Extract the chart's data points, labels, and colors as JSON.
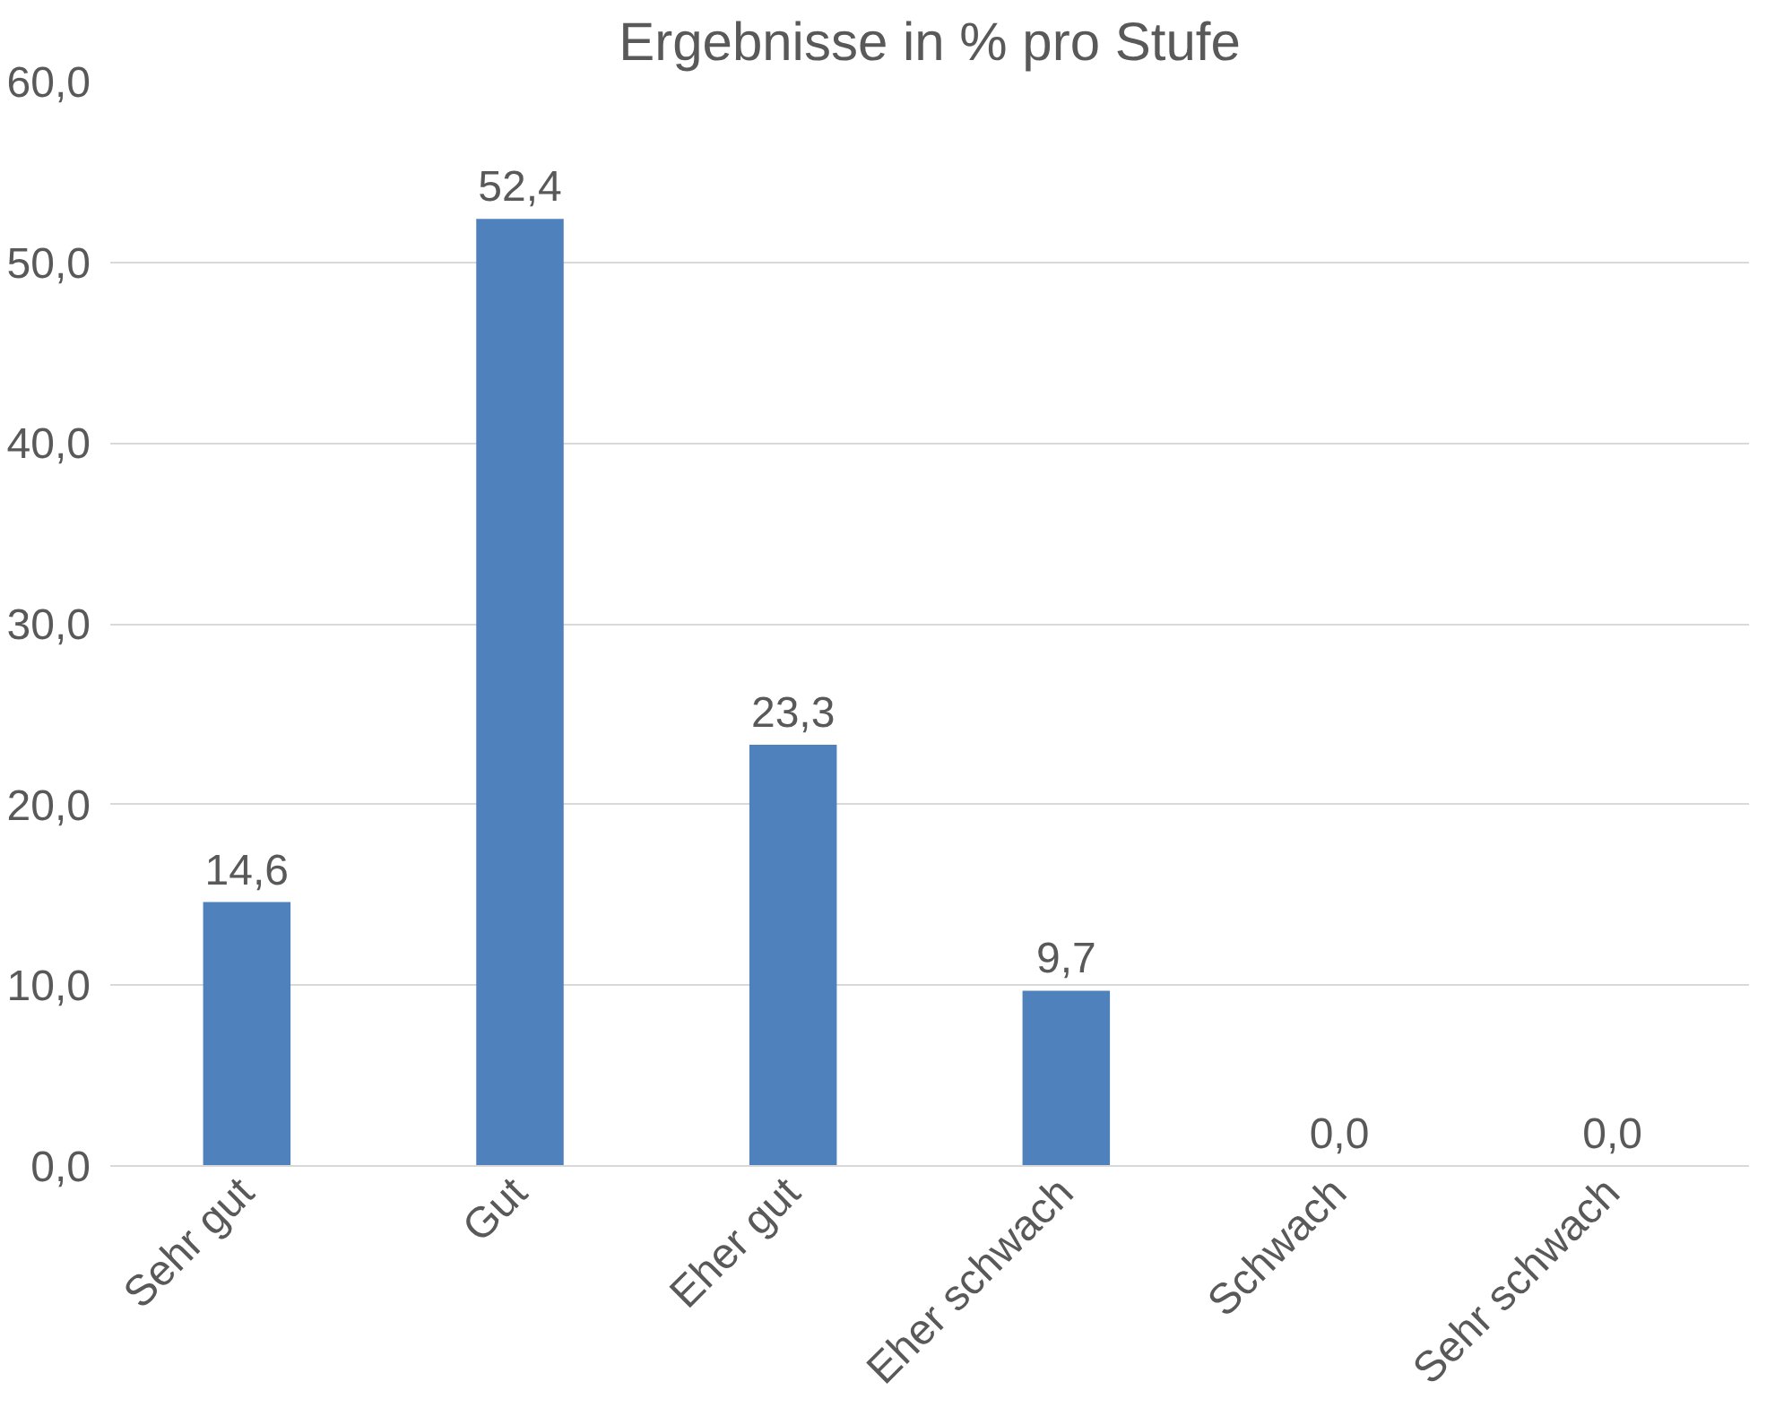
{
  "chart_data": {
    "type": "bar",
    "title": "Ergebnisse in % pro Stufe",
    "categories": [
      "Sehr gut",
      "Gut",
      "Eher gut",
      "Eher schwach",
      "Schwach",
      "Sehr schwach"
    ],
    "values": [
      14.6,
      52.4,
      23.3,
      9.7,
      0.0,
      0.0
    ],
    "value_labels": [
      "14,6",
      "52,4",
      "23,3",
      "9,7",
      "0,0",
      "0,0"
    ],
    "color": "#4f81bd",
    "ylim": [
      0,
      60
    ],
    "yticks": [
      {
        "value": 0,
        "label": "0,0"
      },
      {
        "value": 10,
        "label": "10,0"
      },
      {
        "value": 20,
        "label": "20,0"
      },
      {
        "value": 30,
        "label": "30,0"
      },
      {
        "value": 40,
        "label": "40,0"
      },
      {
        "value": 50,
        "label": "50,0"
      },
      {
        "value": 60,
        "label": "60,0"
      }
    ],
    "grid": "y"
  }
}
